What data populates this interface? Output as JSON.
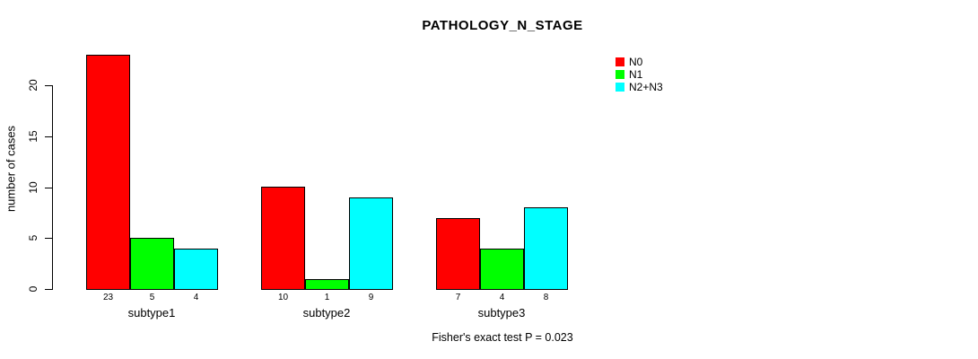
{
  "title": "PATHOLOGY_N_STAGE",
  "footer": "Fisher's exact test P = 0.023",
  "legend": {
    "items": [
      {
        "label": "N0",
        "color": "#FF0000"
      },
      {
        "label": "N1",
        "color": "#00FF00"
      },
      {
        "label": "N2+N3",
        "color": "#00FFFF"
      }
    ]
  },
  "chart_data": {
    "type": "bar",
    "title": "PATHOLOGY_N_STAGE",
    "xlabel": "",
    "ylabel": "number of cases",
    "categories": [
      "subtype1",
      "subtype2",
      "subtype3"
    ],
    "series": [
      {
        "name": "N0",
        "color": "#FF0000",
        "values": [
          23,
          10,
          7
        ]
      },
      {
        "name": "N1",
        "color": "#00FF00",
        "values": [
          5,
          1,
          4
        ]
      },
      {
        "name": "N2+N3",
        "color": "#00FFFF",
        "values": [
          4,
          9,
          8
        ]
      }
    ],
    "bar_value_labels": [
      [
        "23",
        "5",
        "4"
      ],
      [
        "10",
        "1",
        "9"
      ],
      [
        "7",
        "4",
        "8"
      ]
    ],
    "yticks": [
      0,
      5,
      10,
      15,
      20
    ],
    "ylim": [
      0,
      23
    ],
    "grid": false,
    "legend_position": "right",
    "annotation": "Fisher's exact test P = 0.023"
  }
}
